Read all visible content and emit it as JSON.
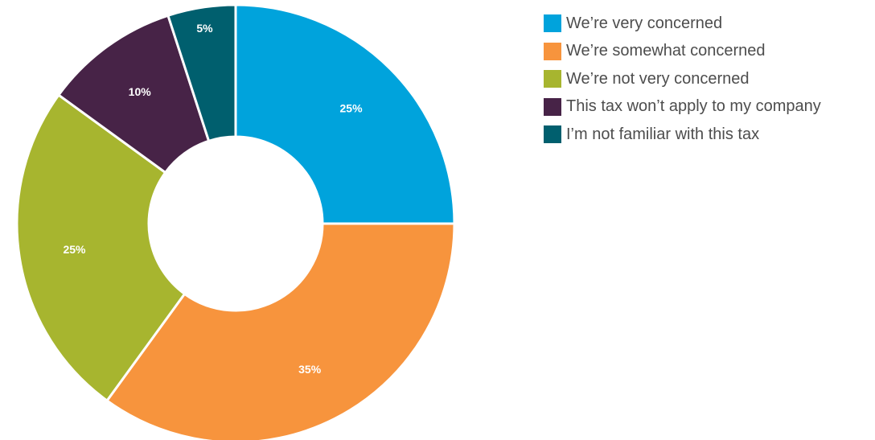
{
  "chart_data": {
    "type": "pie",
    "categories": [
      "We’re very concerned",
      "We’re somewhat concerned",
      "We’re not very concerned",
      "This tax won’t apply to my company",
      "I’m not familiar with this tax"
    ],
    "values": [
      25,
      35,
      25,
      10,
      5
    ],
    "value_labels": [
      "25%",
      "35%",
      "25%",
      "10%",
      "5%"
    ],
    "colors": [
      "#00a3dc",
      "#f7943d",
      "#a7b52f",
      "#472347",
      "#005f6e"
    ],
    "donut": true,
    "legend_position": "right"
  }
}
